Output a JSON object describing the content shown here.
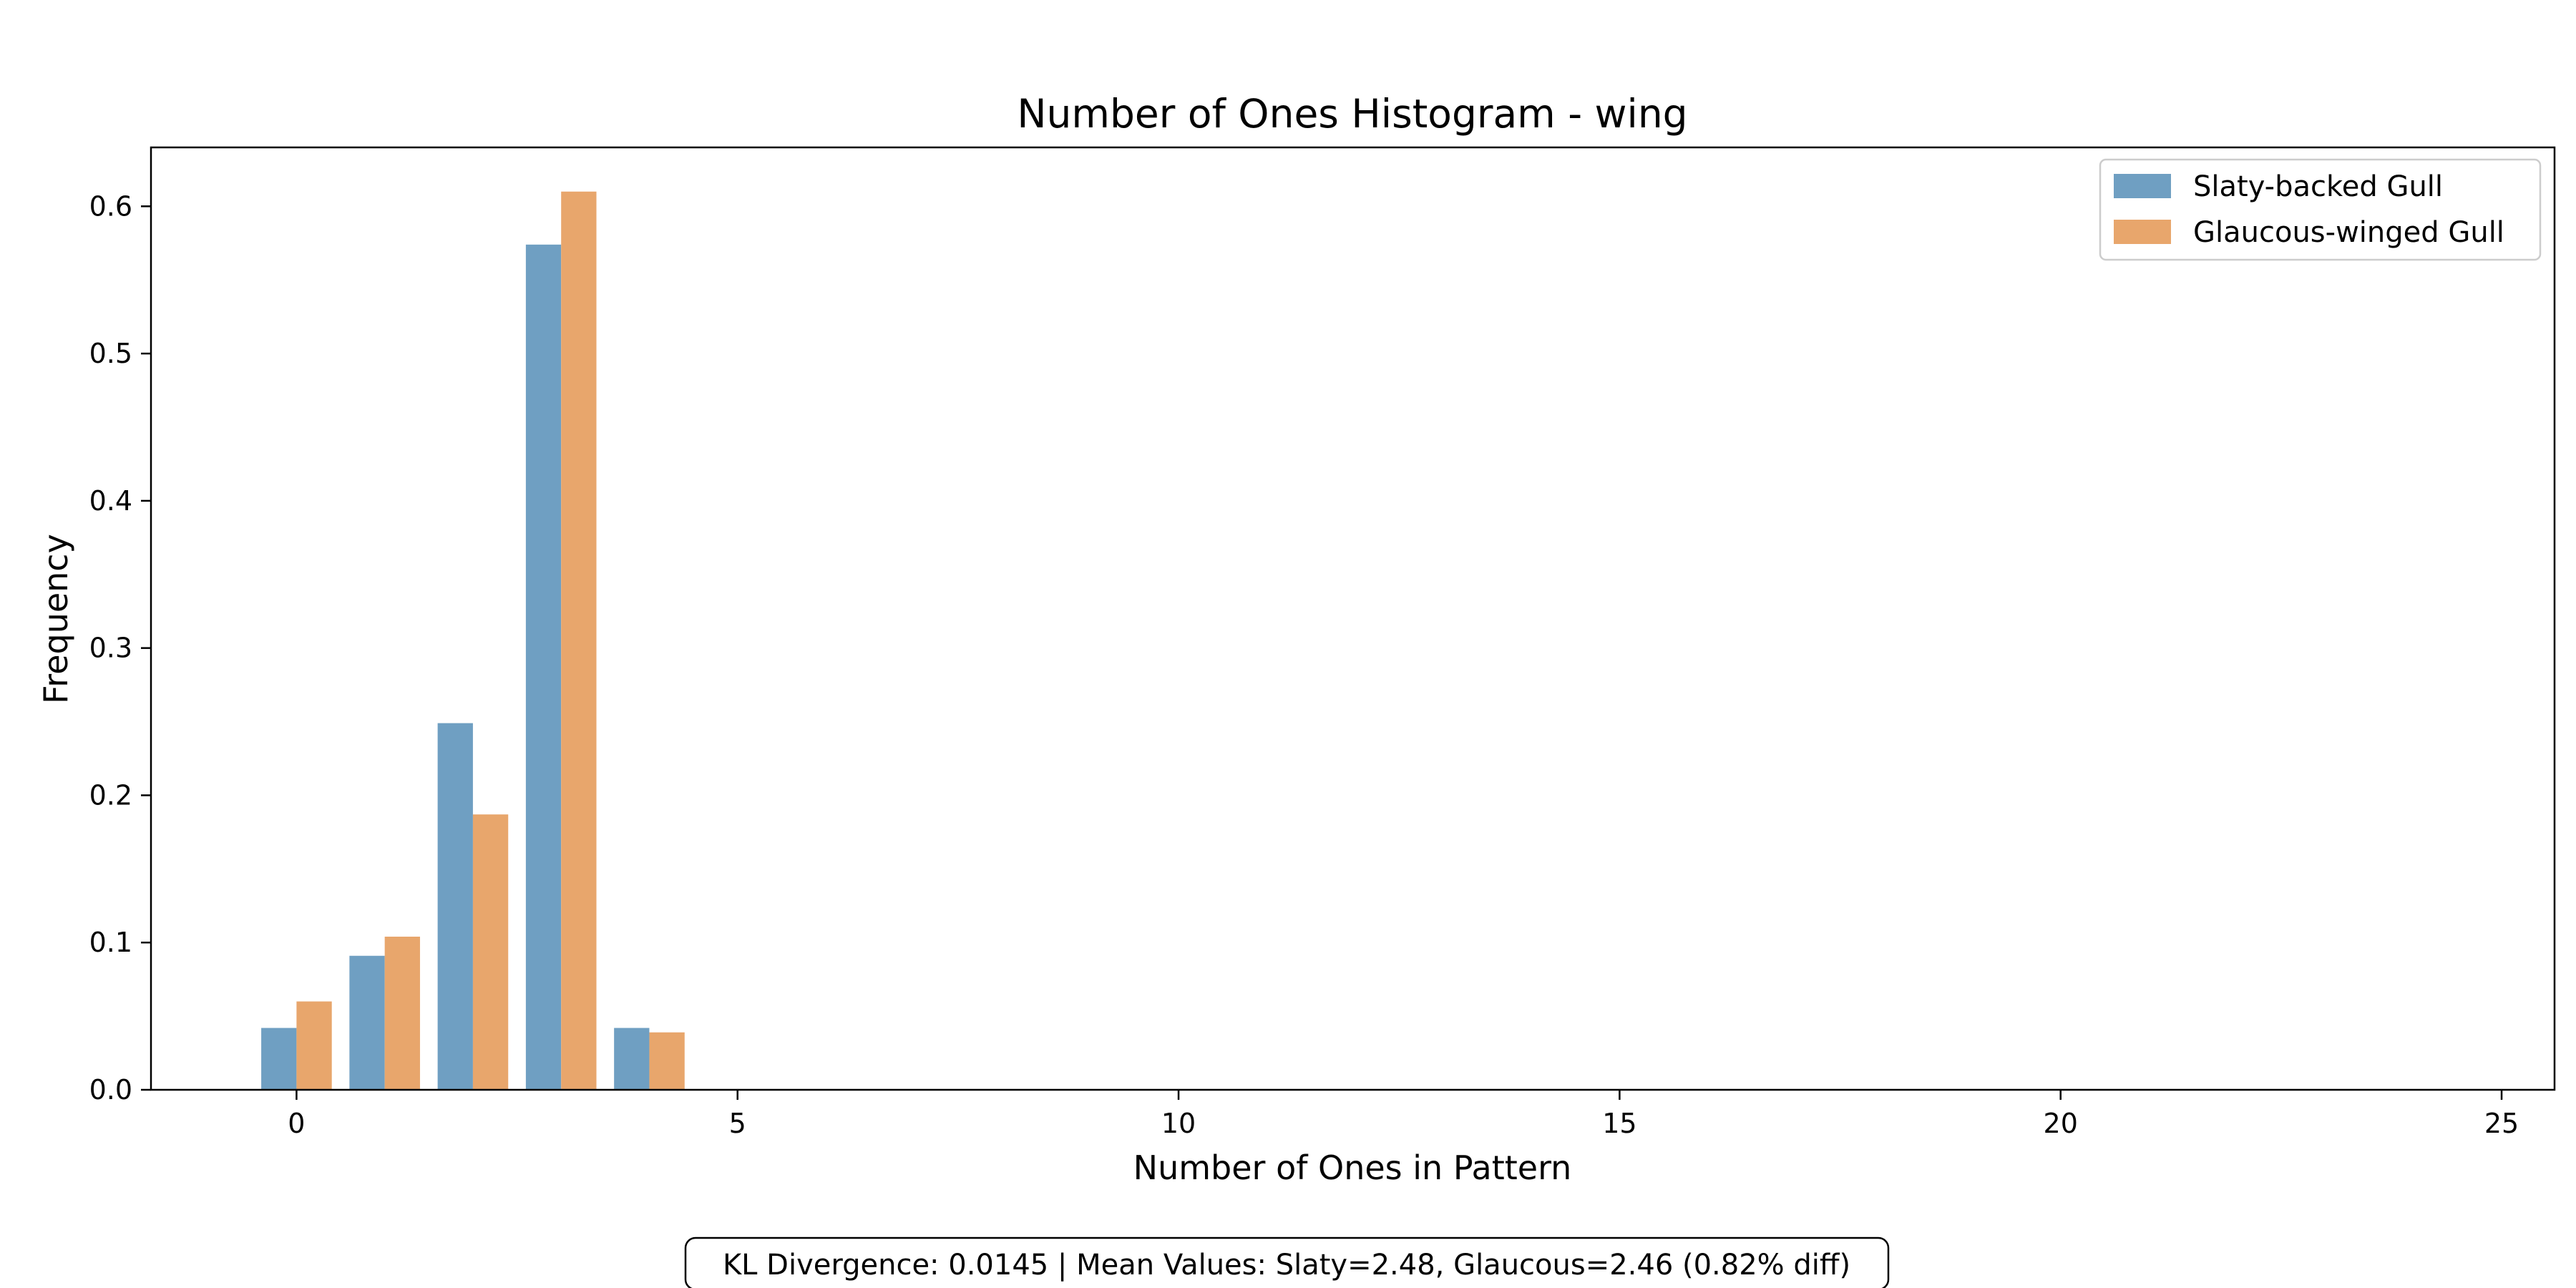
{
  "chart_data": {
    "type": "bar",
    "title": "Number of Ones Histogram - wing",
    "xlabel": "Number of Ones in Pattern",
    "ylabel": "Frequency",
    "categories": [
      0,
      1,
      2,
      3,
      4
    ],
    "series": [
      {
        "name": "Slaty-backed Gull",
        "color": "#6f9fc2",
        "values": [
          0.042,
          0.091,
          0.249,
          0.574,
          0.042
        ]
      },
      {
        "name": "Glaucous-winged Gull",
        "color": "#e8a66c",
        "values": [
          0.06,
          0.104,
          0.187,
          0.61,
          0.039
        ]
      }
    ],
    "xlim": [
      -1.65,
      25.6
    ],
    "ylim": [
      0,
      0.64
    ],
    "xticks": [
      0,
      5,
      10,
      15,
      20,
      25
    ],
    "yticks": [
      0.0,
      0.1,
      0.2,
      0.3,
      0.4,
      0.5,
      0.6
    ],
    "ytick_labels": [
      "0.0",
      "0.1",
      "0.2",
      "0.3",
      "0.4",
      "0.5",
      "0.6"
    ],
    "legend_position": "top-right",
    "grid": false,
    "annotation": "KL Divergence: 0.0145 | Mean Values: Slaty=2.48, Glaucous=2.46 (0.82% diff)"
  }
}
